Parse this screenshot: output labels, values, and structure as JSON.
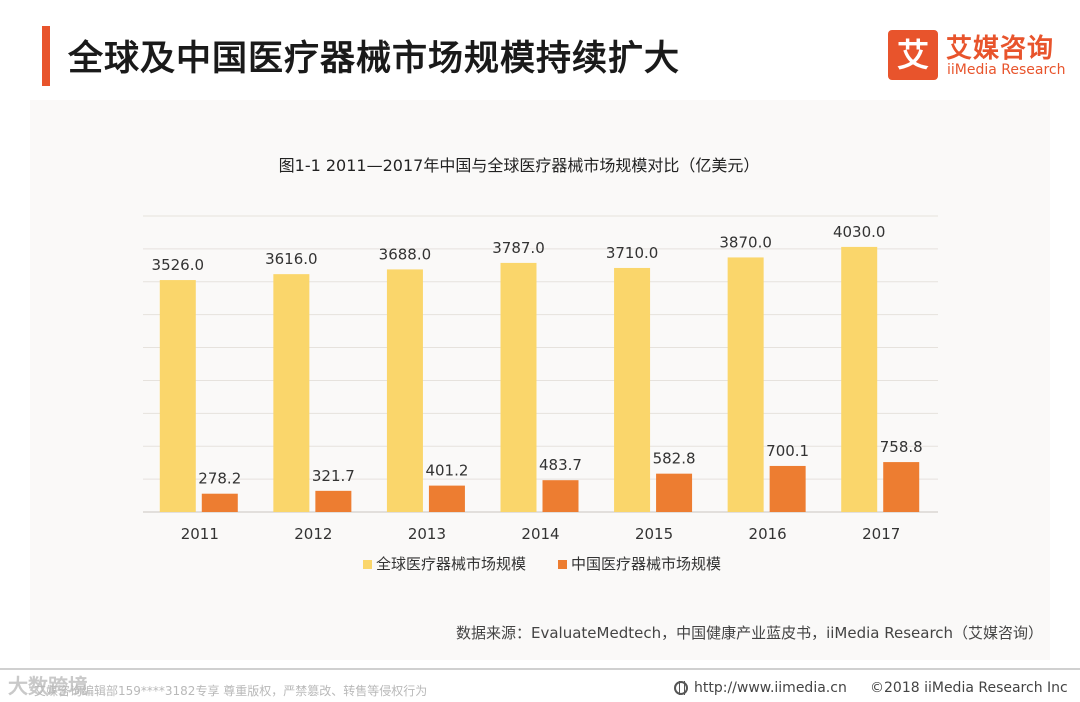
{
  "header": {
    "title": "全球及中国医疗器械市场规模持续扩大",
    "logo_mark": "艾",
    "logo_cn": "艾媒咨询",
    "logo_en": "iiMedia Research"
  },
  "chart_data": {
    "type": "bar",
    "title": "图1-1 2011—2017年中国与全球医疗器械市场规模对比（亿美元）",
    "categories": [
      "2011",
      "2012",
      "2013",
      "2014",
      "2015",
      "2016",
      "2017"
    ],
    "series": [
      {
        "name": "全球医疗器械市场规模",
        "color": "#fad66b",
        "values": [
          3526.0,
          3616.0,
          3688.0,
          3787.0,
          3710.0,
          3870.0,
          4030.0
        ],
        "labels": [
          "3526.0",
          "3616.0",
          "3688.0",
          "3787.0",
          "3710.0",
          "3870.0",
          "4030.0"
        ]
      },
      {
        "name": "中国医疗器械市场规模",
        "color": "#ed7d31",
        "values": [
          278.2,
          321.7,
          401.2,
          483.7,
          582.8,
          700.1,
          758.8
        ],
        "labels": [
          "278.2",
          "321.7",
          "401.2",
          "483.7",
          "582.8",
          "700.1",
          "758.8"
        ]
      }
    ],
    "ylim": [
      0,
      4500
    ],
    "grid": true,
    "legend": "bottom"
  },
  "source": "数据来源：EvaluateMedtech，中国健康产业蓝皮书，iiMedia Research（艾媒咨询）",
  "footer": {
    "watermark": "大数跨境",
    "copyright_note": "艾媒咨询编辑部159****3182专享 尊重版权，严禁篡改、转售等侵权行为",
    "url": "http://www.iimedia.cn",
    "copyright": "©2018  iiMedia Research  Inc"
  }
}
